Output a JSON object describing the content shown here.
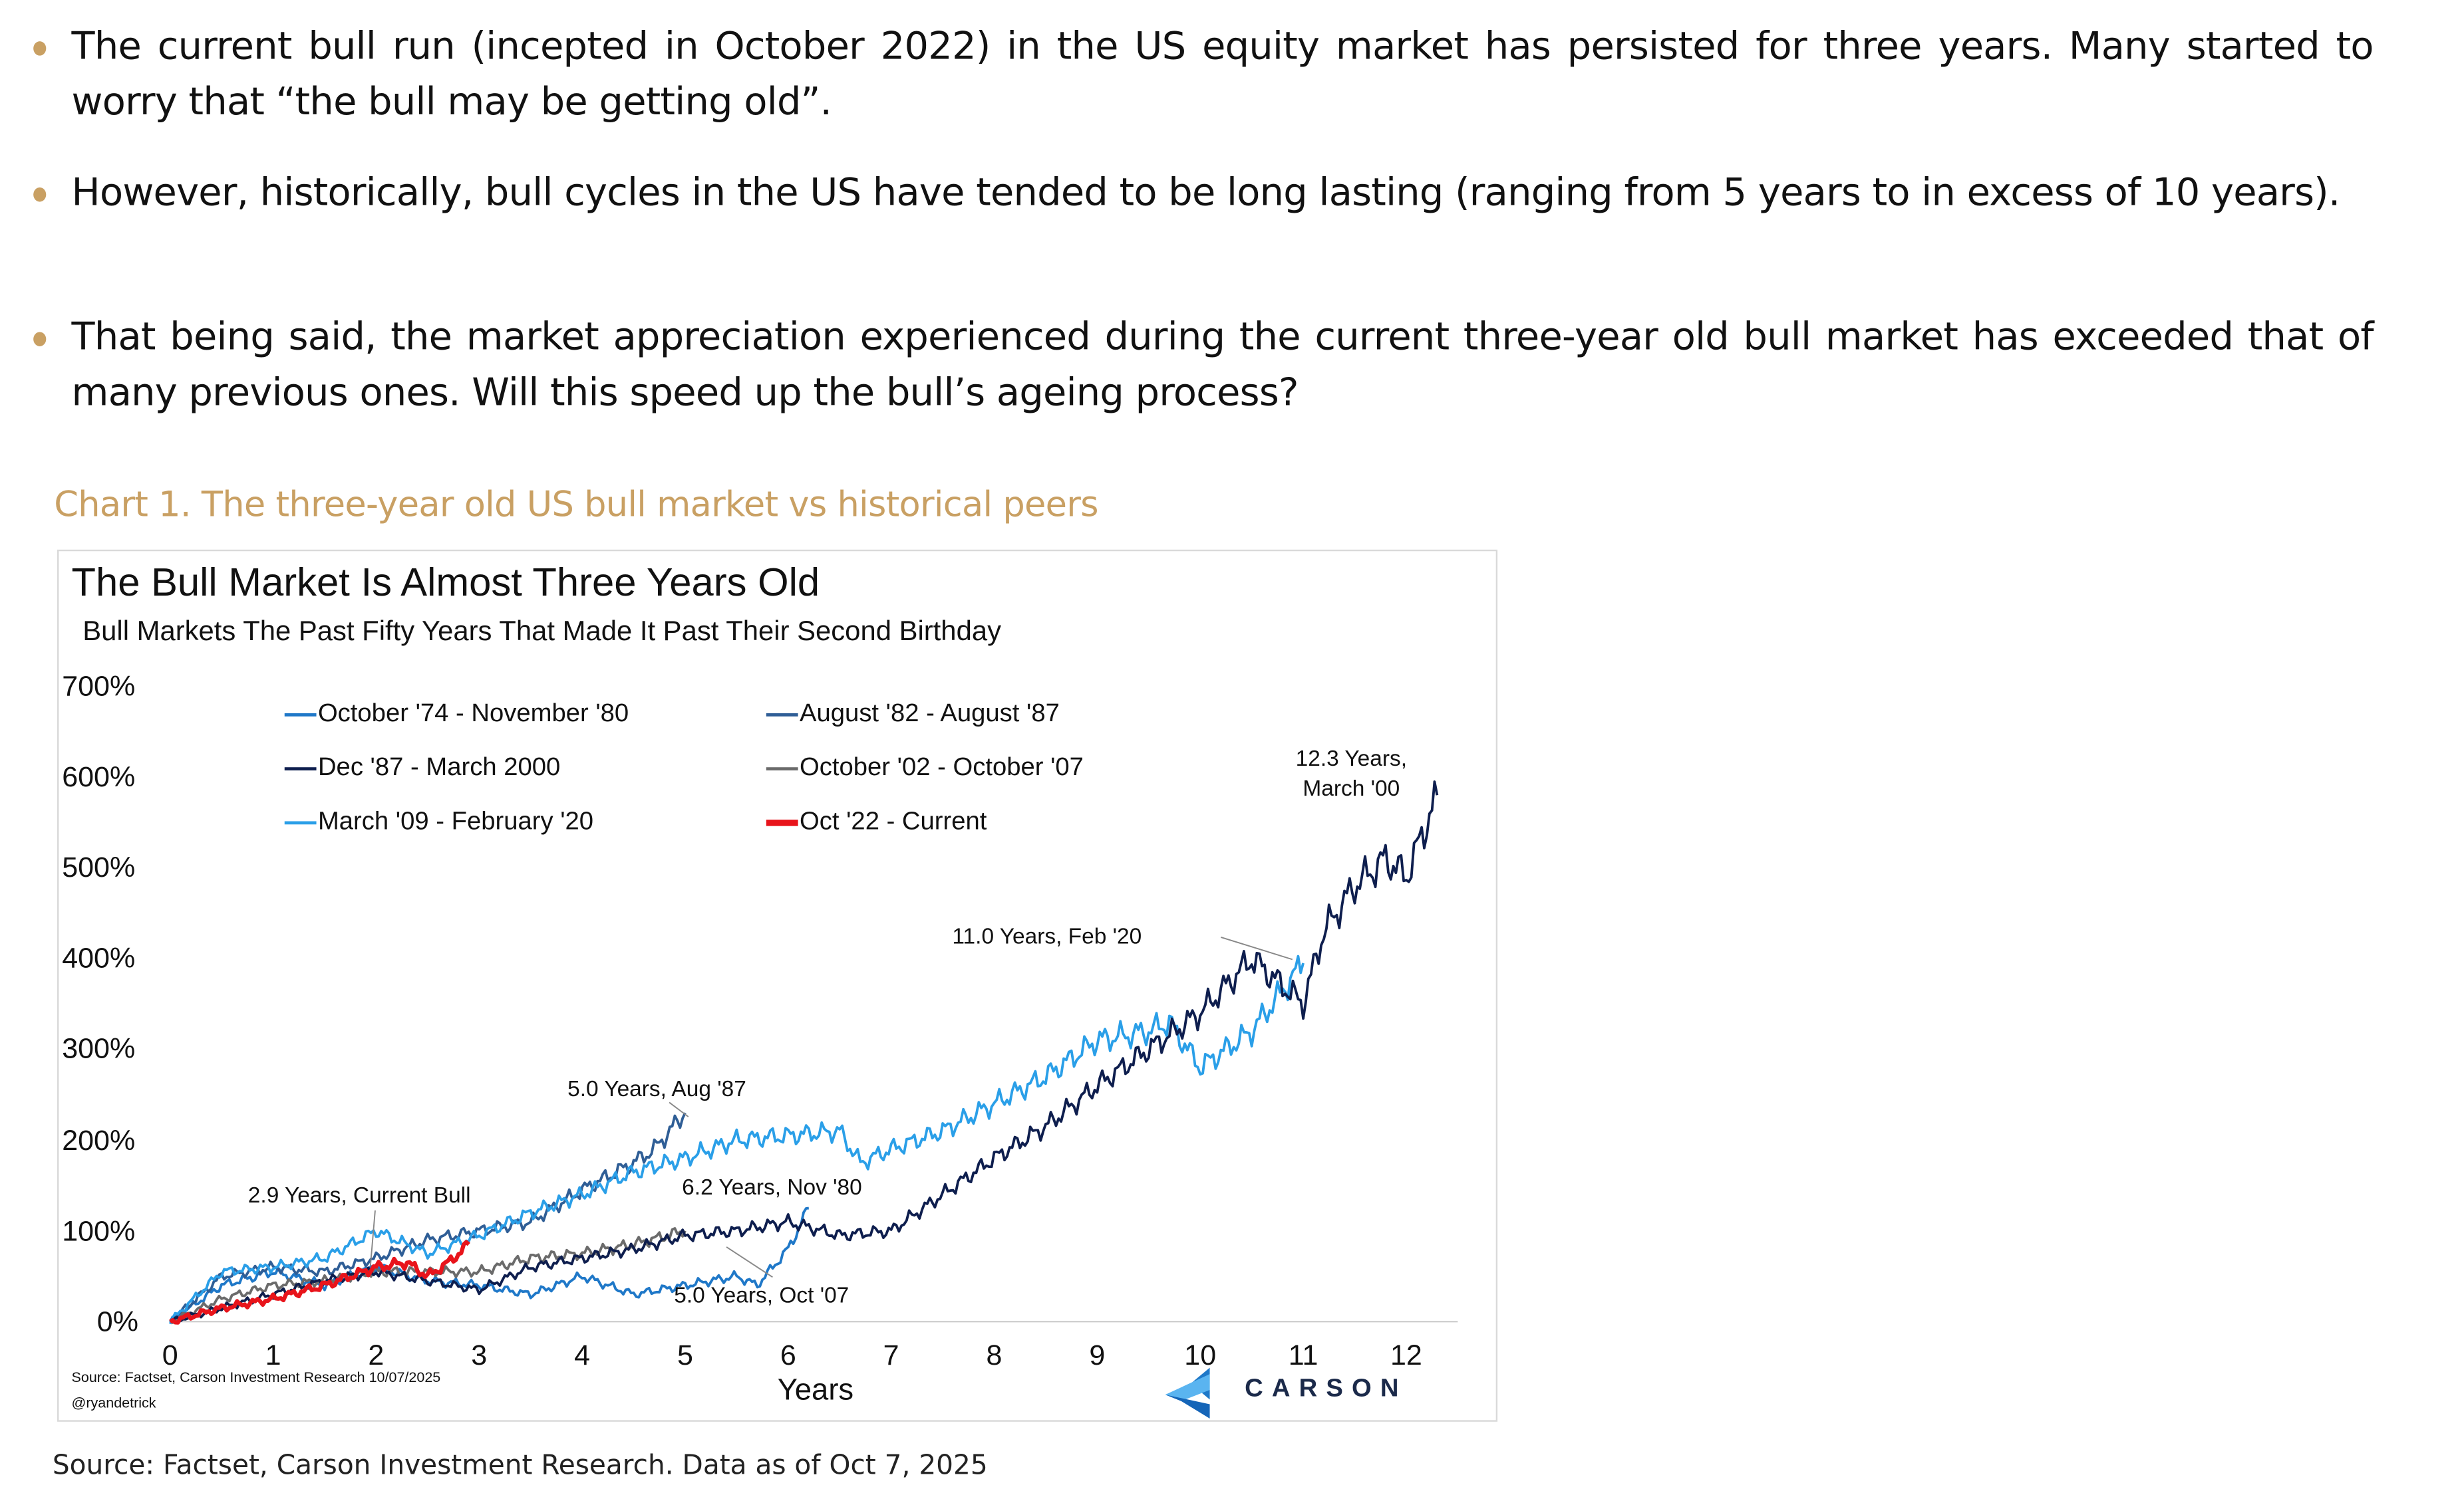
{
  "bullets": [
    "The current bull run (incepted in October 2022) in the US equity market has persisted for three years. Many started to worry that “the bull may be getting old”.",
    "However, historically, bull cycles in the US have tended to be long lasting (ranging from 5 years to in excess of 10 years).",
    "That being said, the market appreciation experienced during the current three-year old bull market has exceeded that of many previous ones. Will this speed up the bull’s ageing process?"
  ],
  "caption": "Chart 1. The three-year old US bull market vs historical peers",
  "source_line": "Source: Factset, Carson Investment Research. Data as of Oct 7, 2025",
  "colors": {
    "accent": "#C9A063"
  },
  "chart_data": {
    "type": "line",
    "title": "The Bull Market Is Almost Three Years Old",
    "subtitle": "Bull Markets The Past Fifty Years That Made It Past Their Second Birthday",
    "xlabel": "Years",
    "ylabel": "",
    "xlim": [
      0,
      12.5
    ],
    "ylim": [
      0,
      700
    ],
    "x_ticks": [
      "0",
      "1",
      "2",
      "3",
      "4",
      "5",
      "6",
      "7",
      "8",
      "9",
      "10",
      "11",
      "12"
    ],
    "y_ticks": [
      "0%",
      "100%",
      "200%",
      "300%",
      "400%",
      "500%",
      "600%",
      "700%"
    ],
    "grid": false,
    "legend_position": "top-left",
    "series": [
      {
        "name": "October '74 - November '80",
        "color": "#1F78C8",
        "x": [
          0,
          0.5,
          1,
          1.5,
          2,
          2.5,
          3,
          3.5,
          4,
          4.5,
          5,
          5.5,
          5.7,
          6,
          6.2
        ],
        "y": [
          0,
          40,
          55,
          40,
          60,
          45,
          40,
          30,
          50,
          30,
          40,
          50,
          40,
          80,
          125
        ]
      },
      {
        "name": "August '82 - August '87",
        "color": "#2F5E96",
        "x": [
          0,
          0.5,
          1,
          1.5,
          2,
          2.5,
          3,
          3.5,
          4,
          4.5,
          4.7,
          5
        ],
        "y": [
          0,
          50,
          60,
          55,
          70,
          90,
          100,
          110,
          145,
          175,
          190,
          230
        ]
      },
      {
        "name": "Dec '87 - March 2000",
        "color": "#0E1E4E",
        "x": [
          0,
          0.5,
          1,
          1.5,
          2,
          2.5,
          3,
          3.5,
          4,
          4.5,
          5,
          5.5,
          6,
          6.5,
          7,
          7.5,
          8,
          8.5,
          9,
          9.5,
          10,
          10.5,
          10.7,
          11,
          11.2,
          11.5,
          11.8,
          12,
          12.2,
          12.3
        ],
        "y": [
          0,
          15,
          30,
          45,
          55,
          45,
          35,
          60,
          70,
          80,
          95,
          100,
          110,
          95,
          100,
          140,
          180,
          215,
          260,
          300,
          340,
          400,
          380,
          350,
          430,
          480,
          510,
          490,
          550,
          580
        ]
      },
      {
        "name": "October '02 - October '07",
        "color": "#6B6B6B",
        "x": [
          0,
          0.5,
          1,
          1.5,
          2,
          2.5,
          3,
          3.5,
          4,
          4.5,
          5
        ],
        "y": [
          0,
          25,
          40,
          45,
          55,
          55,
          55,
          70,
          75,
          85,
          100
        ]
      },
      {
        "name": "March '09 - February '20",
        "color": "#2A9FE8",
        "x": [
          0,
          0.5,
          1,
          1.5,
          2,
          2.5,
          3,
          3.5,
          4,
          4.5,
          5,
          5.5,
          6,
          6.5,
          6.7,
          7,
          7.5,
          8,
          8.5,
          9,
          9.5,
          9.7,
          10,
          10.5,
          11
        ],
        "y": [
          0,
          55,
          60,
          70,
          100,
          75,
          95,
          120,
          140,
          165,
          180,
          200,
          205,
          210,
          175,
          190,
          210,
          240,
          270,
          310,
          320,
          330,
          280,
          320,
          395
        ]
      },
      {
        "name": "Oct '22 - Current",
        "color": "#E8141B",
        "x": [
          0,
          0.5,
          1,
          1.5,
          2,
          2.3,
          2.5,
          2.7,
          2.9
        ],
        "y": [
          0,
          15,
          25,
          40,
          60,
          65,
          50,
          65,
          85
        ]
      }
    ],
    "annotations": [
      {
        "text": "12.3 Years,",
        "text2": "March '00"
      },
      {
        "text": "11.0 Years, Feb '20"
      },
      {
        "text": "5.0 Years, Aug '87"
      },
      {
        "text": "2.9 Years, Current Bull"
      },
      {
        "text": "6.2 Years, Nov '80"
      },
      {
        "text": "5.0 Years, Oct '07"
      }
    ],
    "source": "Source: Factset, Carson Investment Research 10/07/2025",
    "handle": "@ryandetrick",
    "logo": "CARSON"
  }
}
